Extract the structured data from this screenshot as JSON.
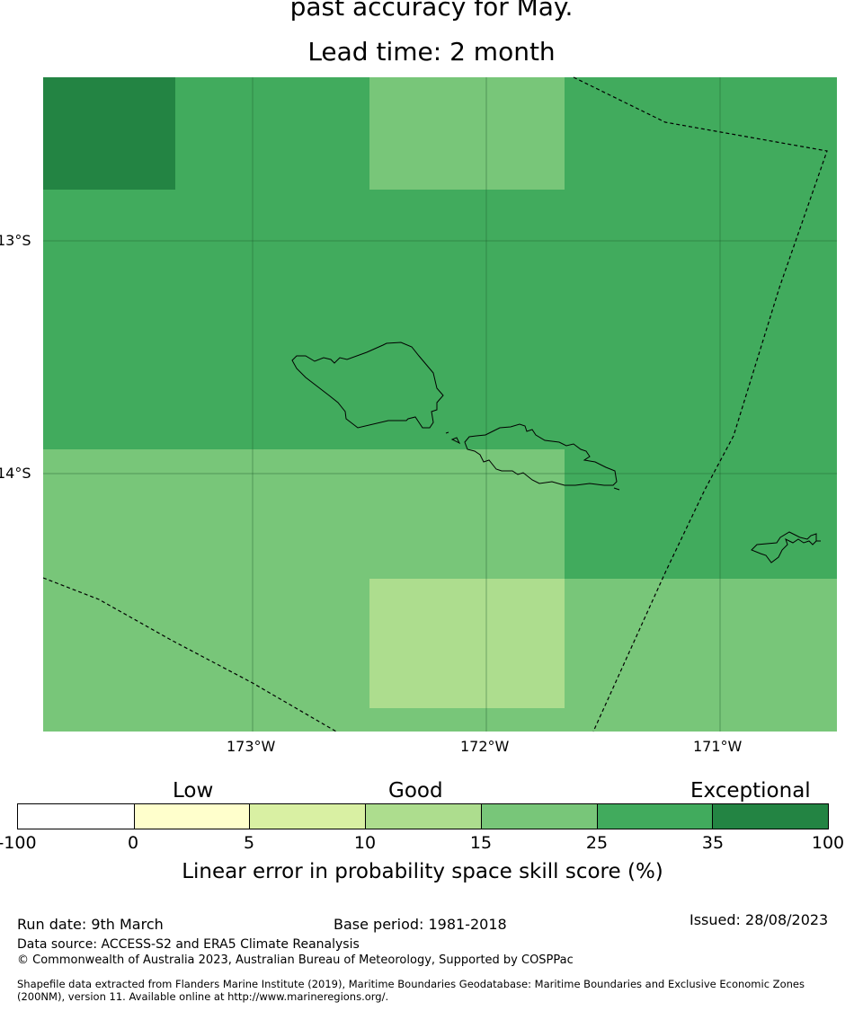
{
  "title": {
    "line1": "past accuracy for May.",
    "line2": "Lead time: 2 month"
  },
  "map": {
    "lat_labels": [
      "13°S",
      "14°S"
    ],
    "lon_labels": [
      "173°W",
      "172°W",
      "171°W"
    ]
  },
  "legend": {
    "categories": [
      "Low",
      "Good",
      "Exceptional"
    ],
    "ticks": [
      "-100",
      "0",
      "5",
      "10",
      "15",
      "25",
      "35",
      "100"
    ],
    "colors": [
      "#ffffff",
      "#ffffcc",
      "#d9f0a3",
      "#addd8e",
      "#78c679",
      "#41ab5d",
      "#238443"
    ],
    "label": "Linear error in probability space skill score (%)"
  },
  "footer": {
    "run_date": "Run date: 9th March",
    "base_period": "Base period: 1981-2018",
    "issued": "Issued: 28/08/2023",
    "data_source": "Data source: ACCESS-S2 and ERA5 Climate Reanalysis",
    "copyright": "© Commonwealth of Australia 2023, Australian Bureau of Meteorology, Supported by COSPPac",
    "shapefile_line1": "Shapefile data extracted from Flanders Marine Institute (2019), Maritime Boundaries Geodatabase: Maritime Boundaries and Exclusive Economic Zones",
    "shapefile_line2": "(200NM), version 11. Available online at http://www.marineregions.org/."
  }
}
